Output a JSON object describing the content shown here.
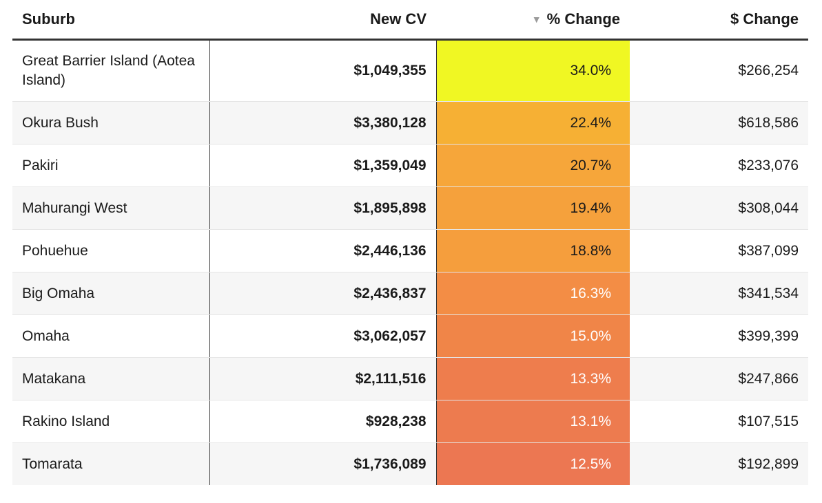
{
  "chart_data": {
    "type": "table",
    "columns": [
      "Suburb",
      "New CV",
      "% Change",
      "$ Change"
    ],
    "sort": {
      "column": "% Change",
      "direction": "descending"
    },
    "colors": {
      "high": "#f0f723",
      "low": "#ec7752"
    },
    "rows": [
      {
        "suburb": "Great Barrier Island (Aotea Island)",
        "new_cv": "$1,049,355",
        "pct_change": "34.0%",
        "pct_value": 34.0,
        "dollar_change": "$266,254",
        "bg": "#f0f723",
        "fg": "#1a1a1a"
      },
      {
        "suburb": "Okura Bush",
        "new_cv": "$3,380,128",
        "pct_change": "22.4%",
        "pct_value": 22.4,
        "dollar_change": "$618,586",
        "bg": "#f6b034",
        "fg": "#1a1a1a"
      },
      {
        "suburb": "Pakiri",
        "new_cv": "$1,359,049",
        "pct_change": "20.7%",
        "pct_value": 20.7,
        "dollar_change": "$233,076",
        "bg": "#f6a63a",
        "fg": "#1a1a1a"
      },
      {
        "suburb": "Mahurangi West",
        "new_cv": "$1,895,898",
        "pct_change": "19.4%",
        "pct_value": 19.4,
        "dollar_change": "$308,044",
        "bg": "#f5a13c",
        "fg": "#1a1a1a"
      },
      {
        "suburb": "Pohuehue",
        "new_cv": "$2,446,136",
        "pct_change": "18.8%",
        "pct_value": 18.8,
        "dollar_change": "$387,099",
        "bg": "#f59e3d",
        "fg": "#1a1a1a"
      },
      {
        "suburb": "Big Omaha",
        "new_cv": "$2,436,837",
        "pct_change": "16.3%",
        "pct_value": 16.3,
        "dollar_change": "$341,534",
        "bg": "#f38d45",
        "fg": "#ffffff"
      },
      {
        "suburb": "Omaha",
        "new_cv": "$3,062,057",
        "pct_change": "15.0%",
        "pct_value": 15.0,
        "dollar_change": "$399,399",
        "bg": "#f08548",
        "fg": "#ffffff"
      },
      {
        "suburb": "Matakana",
        "new_cv": "$2,111,516",
        "pct_change": "13.3%",
        "pct_value": 13.3,
        "dollar_change": "$247,866",
        "bg": "#ee7d4d",
        "fg": "#ffffff"
      },
      {
        "suburb": "Rakino Island",
        "new_cv": "$928,238",
        "pct_change": "13.1%",
        "pct_value": 13.1,
        "dollar_change": "$107,515",
        "bg": "#ed7b4f",
        "fg": "#ffffff"
      },
      {
        "suburb": "Tomarata",
        "new_cv": "$1,736,089",
        "pct_change": "12.5%",
        "pct_value": 12.5,
        "dollar_change": "$192,899",
        "bg": "#ec7752",
        "fg": "#ffffff"
      }
    ]
  }
}
